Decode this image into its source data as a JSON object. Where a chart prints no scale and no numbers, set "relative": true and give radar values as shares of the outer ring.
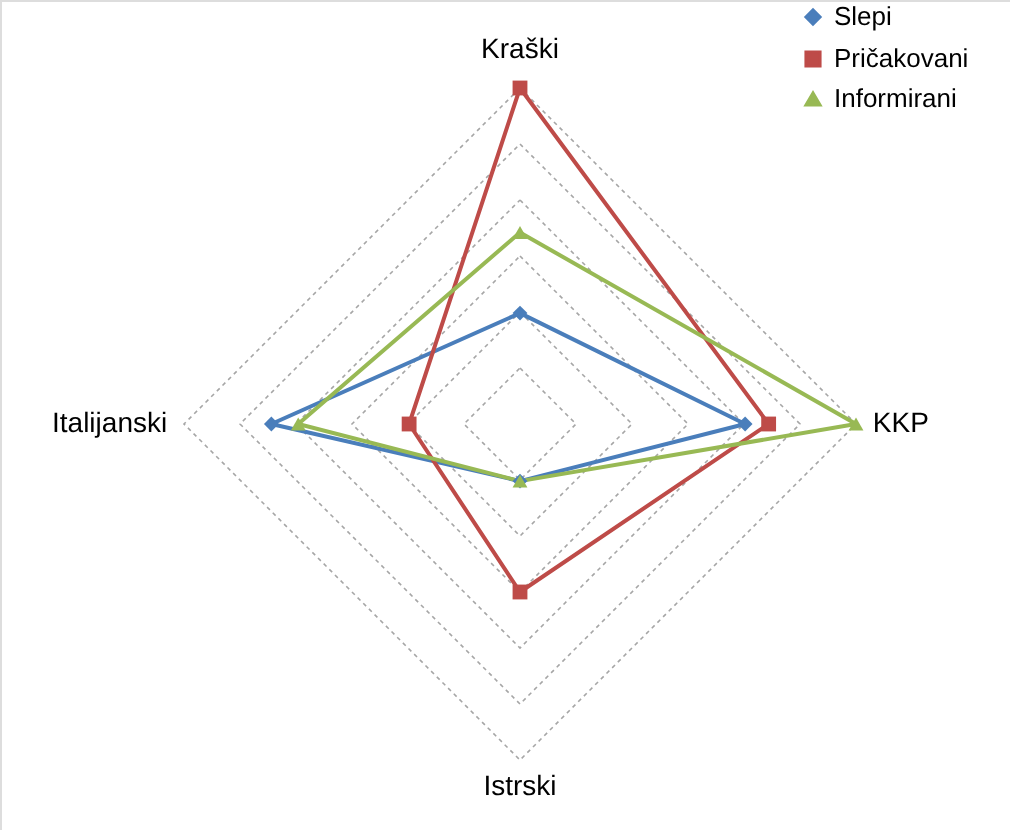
{
  "chart_data": {
    "type": "radar",
    "relative": true,
    "grid": true,
    "legend": "top right",
    "marker": "circle",
    "categories": [
      "Kraški",
      "KKP",
      "Istrski",
      "Italijanski"
    ],
    "series": [
      {
        "name": "Slepi",
        "color": "#4a7ebb",
        "marker": "diamond",
        "values": [
          0.33,
          0.67,
          0.17,
          0.74
        ]
      },
      {
        "name": "Pričakovani",
        "color": "#be4b48",
        "marker": "square",
        "values": [
          1.0,
          0.74,
          0.5,
          0.33
        ]
      },
      {
        "name": "Informirani",
        "color": "#98b954",
        "marker": "triangle",
        "values": [
          0.57,
          1.0,
          0.17,
          0.66
        ]
      }
    ]
  }
}
